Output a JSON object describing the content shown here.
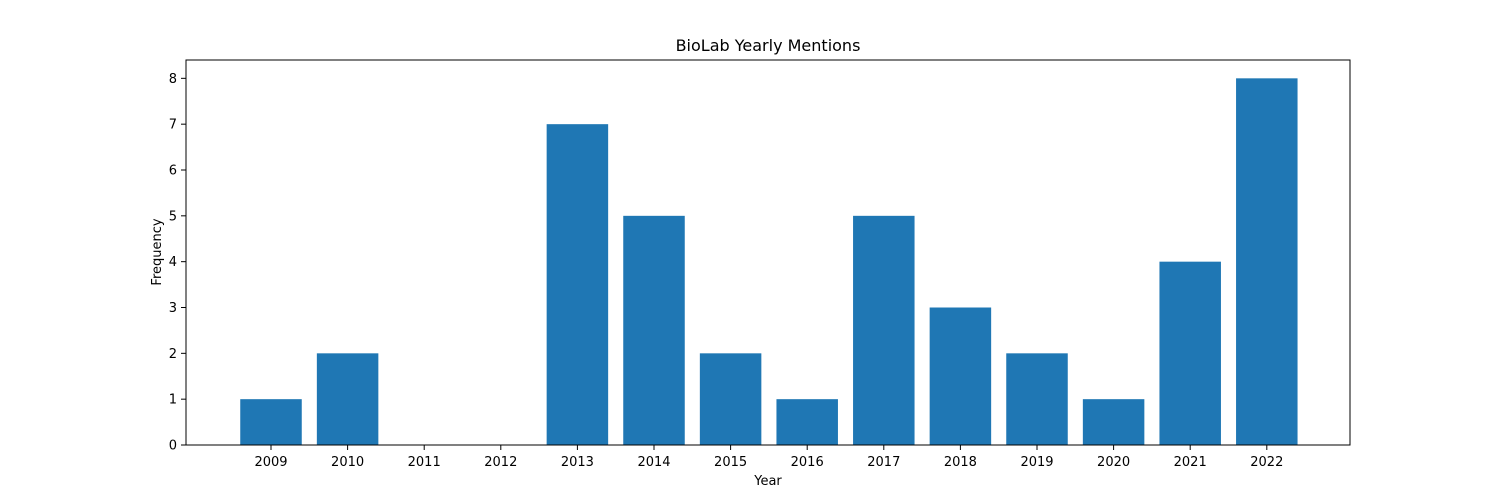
{
  "chart_data": {
    "type": "bar",
    "title": "BioLab Yearly Mentions",
    "xlabel": "Year",
    "ylabel": "Frequency",
    "categories": [
      "2009",
      "2010",
      "2011",
      "2012",
      "2013",
      "2014",
      "2015",
      "2016",
      "2017",
      "2018",
      "2019",
      "2020",
      "2021",
      "2022"
    ],
    "values": [
      1,
      2,
      0,
      0,
      7,
      5,
      2,
      1,
      5,
      3,
      2,
      1,
      4,
      8
    ],
    "ylim": [
      0,
      8.4
    ],
    "yticks": [
      0,
      1,
      2,
      3,
      4,
      5,
      6,
      7,
      8
    ],
    "grid": false,
    "bar_color": "#1f77b4"
  }
}
